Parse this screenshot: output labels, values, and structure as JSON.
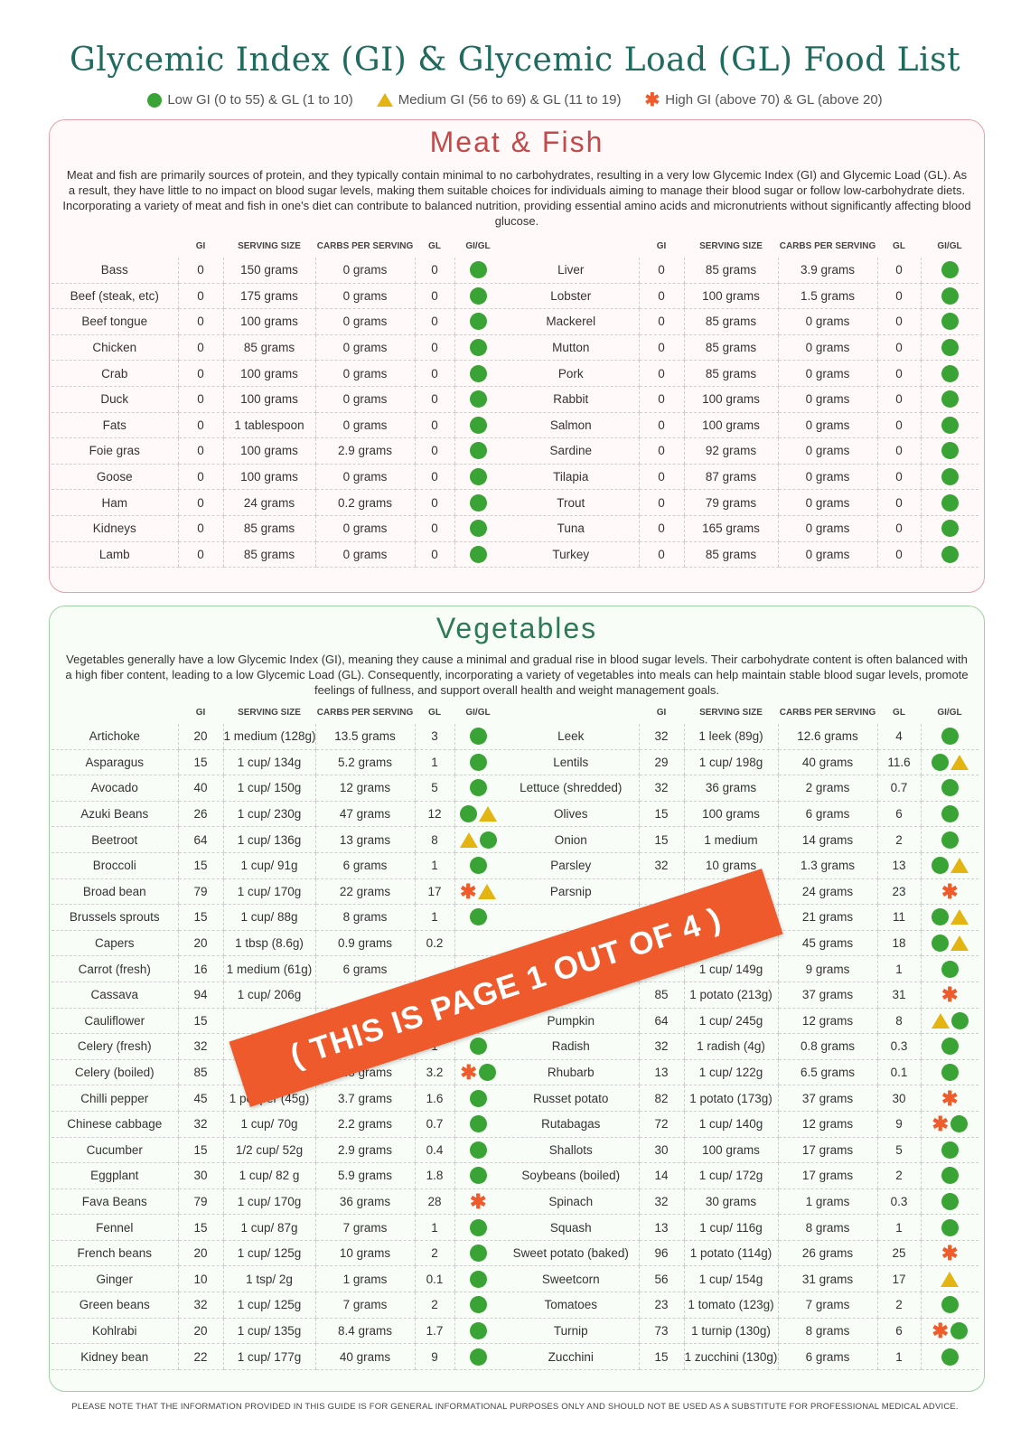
{
  "title": "Glycemic Index (GI) & Glycemic Load (GL) Food List",
  "legend": [
    {
      "icon": "low",
      "label": "Low GI (0 to 55) & GL (1 to 10)"
    },
    {
      "icon": "medium",
      "label": "Medium GI (56 to 69) & GL (11 to 19)"
    },
    {
      "icon": "high",
      "label": "High GI (above 70) & GL (above 20)"
    }
  ],
  "colors": {
    "low": "#3aa335",
    "medium": "#e3b412",
    "high": "#ef5b2a"
  },
  "columns": [
    "GI",
    "SERVING SIZE",
    "CARBS PER SERVING",
    "GL",
    "GI/GL"
  ],
  "meat": {
    "title": "Meat & Fish",
    "description": "Meat and fish are primarily sources of protein, and they typically contain minimal to no carbohydrates, resulting in a very low Glycemic Index (GI) and Glycemic Load (GL). As a result, they have little to no impact on blood sugar levels, making them suitable choices for individuals aiming to manage their blood sugar or follow low-carbohydrate diets. Incorporating a variety of meat and fish in one's diet can contribute to balanced nutrition, providing essential amino acids and micronutrients without significantly affecting blood glucose.",
    "left": [
      [
        "Bass",
        "0",
        "150 grams",
        "0 grams",
        "0",
        "low"
      ],
      [
        "Beef (steak, etc)",
        "0",
        "175 grams",
        "0 grams",
        "0",
        "low"
      ],
      [
        "Beef tongue",
        "0",
        "100 grams",
        "0 grams",
        "0",
        "low"
      ],
      [
        "Chicken",
        "0",
        "85 grams",
        "0 grams",
        "0",
        "low"
      ],
      [
        "Crab",
        "0",
        "100 grams",
        "0 grams",
        "0",
        "low"
      ],
      [
        "Duck",
        "0",
        "100 grams",
        "0 grams",
        "0",
        "low"
      ],
      [
        "Fats",
        "0",
        "1 tablespoon",
        "0 grams",
        "0",
        "low"
      ],
      [
        "Foie gras",
        "0",
        "100 grams",
        "2.9 grams",
        "0",
        "low"
      ],
      [
        "Goose",
        "0",
        "100 grams",
        "0 grams",
        "0",
        "low"
      ],
      [
        "Ham",
        "0",
        "24 grams",
        "0.2 grams",
        "0",
        "low"
      ],
      [
        "Kidneys",
        "0",
        "85 grams",
        "0 grams",
        "0",
        "low"
      ],
      [
        "Lamb",
        "0",
        "85 grams",
        "0 grams",
        "0",
        "low"
      ]
    ],
    "right": [
      [
        "Liver",
        "0",
        "85 grams",
        "3.9 grams",
        "0",
        "low"
      ],
      [
        "Lobster",
        "0",
        "100 grams",
        "1.5 grams",
        "0",
        "low"
      ],
      [
        "Mackerel",
        "0",
        "85 grams",
        "0 grams",
        "0",
        "low"
      ],
      [
        "Mutton",
        "0",
        "85 grams",
        "0 grams",
        "0",
        "low"
      ],
      [
        "Pork",
        "0",
        "85 grams",
        "0 grams",
        "0",
        "low"
      ],
      [
        "Rabbit",
        "0",
        "100 grams",
        "0 grams",
        "0",
        "low"
      ],
      [
        "Salmon",
        "0",
        "100 grams",
        "0 grams",
        "0",
        "low"
      ],
      [
        "Sardine",
        "0",
        "92 grams",
        "0 grams",
        "0",
        "low"
      ],
      [
        "Tilapia",
        "0",
        "87 grams",
        "0 grams",
        "0",
        "low"
      ],
      [
        "Trout",
        "0",
        "79 grams",
        "0 grams",
        "0",
        "low"
      ],
      [
        "Tuna",
        "0",
        "165 grams",
        "0 grams",
        "0",
        "low"
      ],
      [
        "Turkey",
        "0",
        "85 grams",
        "0 grams",
        "0",
        "low"
      ]
    ]
  },
  "veg": {
    "title": "Vegetables",
    "description": "Vegetables generally have a low Glycemic Index (GI), meaning they cause a minimal and gradual rise in blood sugar levels. Their carbohydrate content is often balanced with a high fiber content, leading to a low Glycemic Load (GL). Consequently, incorporating a variety of vegetables into meals can help maintain stable blood sugar levels, promote feelings of fullness, and support overall health and weight management goals.",
    "left": [
      [
        "Artichoke",
        "20",
        "1 medium (128g)",
        "13.5 grams",
        "3",
        "low"
      ],
      [
        "Asparagus",
        "15",
        "1 cup/ 134g",
        "5.2 grams",
        "1",
        "low"
      ],
      [
        "Avocado",
        "40",
        "1 cup/ 150g",
        "12 grams",
        "5",
        "low"
      ],
      [
        "Azuki Beans",
        "26",
        "1 cup/ 230g",
        "47 grams",
        "12",
        "low medium"
      ],
      [
        "Beetroot",
        "64",
        "1 cup/ 136g",
        "13 grams",
        "8",
        "medium low"
      ],
      [
        "Broccoli",
        "15",
        "1 cup/ 91g",
        "6 grams",
        "1",
        "low"
      ],
      [
        "Broad bean",
        "79",
        "1 cup/ 170g",
        "22 grams",
        "17",
        "high medium"
      ],
      [
        "Brussels sprouts",
        "15",
        "1 cup/ 88g",
        "8 grams",
        "1",
        "low"
      ],
      [
        "Capers",
        "20",
        "1 tbsp (8.6g)",
        "0.9 grams",
        "0.2",
        ""
      ],
      [
        "Carrot (fresh)",
        "16",
        "1 medium (61g)",
        "6 grams",
        "",
        ""
      ],
      [
        "Cassava",
        "94",
        "1 cup/ 206g",
        "",
        "",
        ""
      ],
      [
        "Cauliflower",
        "15",
        "",
        "",
        "",
        ""
      ],
      [
        "Celery (fresh)",
        "32",
        "",
        "",
        "1",
        "low"
      ],
      [
        "Celery (boiled)",
        "85",
        "",
        "3.8 grams",
        "3.2",
        "high low"
      ],
      [
        "Chilli pepper",
        "45",
        "1 pepper (45g)",
        "3.7 grams",
        "1.6",
        "low"
      ],
      [
        "Chinese cabbage",
        "32",
        "1 cup/ 70g",
        "2.2 grams",
        "0.7",
        "low"
      ],
      [
        "Cucumber",
        "15",
        "1/2 cup/ 52g",
        "2.9 grams",
        "0.4",
        "low"
      ],
      [
        "Eggplant",
        "30",
        "1 cup/ 82 g",
        "5.9 grams",
        "1.8",
        "low"
      ],
      [
        "Fava Beans",
        "79",
        "1 cup/ 170g",
        "36 grams",
        "28",
        "high"
      ],
      [
        "Fennel",
        "15",
        "1 cup/ 87g",
        "7 grams",
        "1",
        "low"
      ],
      [
        "French beans",
        "20",
        "1 cup/ 125g",
        "10 grams",
        "2",
        "low"
      ],
      [
        "Ginger",
        "10",
        "1 tsp/ 2g",
        "1 grams",
        "0.1",
        "low"
      ],
      [
        "Green beans",
        "32",
        "1 cup/ 125g",
        "7 grams",
        "2",
        "low"
      ],
      [
        "Kohlrabi",
        "20",
        "1 cup/ 135g",
        "8.4 grams",
        "1.7",
        "low"
      ],
      [
        "Kidney bean",
        "22",
        "1 cup/ 177g",
        "40 grams",
        "9",
        "low"
      ]
    ],
    "right": [
      [
        "Leek",
        "32",
        "1 leek (89g)",
        "12.6 grams",
        "4",
        "low"
      ],
      [
        "Lentils",
        "29",
        "1 cup/ 198g",
        "40 grams",
        "11.6",
        "low medium"
      ],
      [
        "Lettuce (shredded)",
        "32",
        "36 grams",
        "2 grams",
        "0.7",
        "low"
      ],
      [
        "Olives",
        "15",
        "100 grams",
        "6 grams",
        "6",
        "low"
      ],
      [
        "Onion",
        "15",
        "1 medium",
        "14 grams",
        "2",
        "low"
      ],
      [
        "Parsley",
        "32",
        "10 grams",
        "1.3 grams",
        "13",
        "low medium"
      ],
      [
        "Parsnip",
        "",
        "",
        "24 grams",
        "23",
        "high"
      ],
      [
        "",
        "",
        "",
        "21 grams",
        "11",
        "low medium"
      ],
      [
        "",
        "",
        "",
        "45 grams",
        "18",
        "low medium"
      ],
      [
        "",
        "",
        "1 cup/ 149g",
        "9 grams",
        "1",
        "low"
      ],
      [
        "",
        "85",
        "1 potato (213g)",
        "37 grams",
        "31",
        "high"
      ],
      [
        "Pumpkin",
        "64",
        "1 cup/ 245g",
        "12 grams",
        "8",
        "medium low"
      ],
      [
        "Radish",
        "32",
        "1 radish (4g)",
        "0.8 grams",
        "0.3",
        "low"
      ],
      [
        "Rhubarb",
        "13",
        "1 cup/ 122g",
        "6.5 grams",
        "0.1",
        "low"
      ],
      [
        "Russet potato",
        "82",
        "1 potato (173g)",
        "37 grams",
        "30",
        "high"
      ],
      [
        "Rutabagas",
        "72",
        "1 cup/ 140g",
        "12 grams",
        "9",
        "high low"
      ],
      [
        "Shallots",
        "30",
        "100 grams",
        "17 grams",
        "5",
        "low"
      ],
      [
        "Soybeans (boiled)",
        "14",
        "1 cup/ 172g",
        "17 grams",
        "2",
        "low"
      ],
      [
        "Spinach",
        "32",
        "30 grams",
        "1 grams",
        "0.3",
        "low"
      ],
      [
        "Squash",
        "13",
        "1 cup/ 116g",
        "8 grams",
        "1",
        "low"
      ],
      [
        "Sweet potato (baked)",
        "96",
        "1 potato (114g)",
        "26 grams",
        "25",
        "high"
      ],
      [
        "Sweetcorn",
        "56",
        "1 cup/ 154g",
        "31 grams",
        "17",
        "medium"
      ],
      [
        "Tomatoes",
        "23",
        "1 tomato (123g)",
        "7 grams",
        "2",
        "low"
      ],
      [
        "Turnip",
        "73",
        "1 turnip (130g)",
        "8 grams",
        "6",
        "high low"
      ],
      [
        "Zucchini",
        "15",
        "1 zucchini (130g)",
        "6 grams",
        "1",
        "low"
      ]
    ]
  },
  "banner": "( THIS IS PAGE 1 OUT OF 4 )",
  "footer": "PLEASE NOTE THAT THE INFORMATION PROVIDED IN THIS GUIDE IS FOR GENERAL INFORMATIONAL PURPOSES ONLY AND SHOULD NOT BE USED AS A SUBSTITUTE FOR PROFESSIONAL MEDICAL ADVICE."
}
